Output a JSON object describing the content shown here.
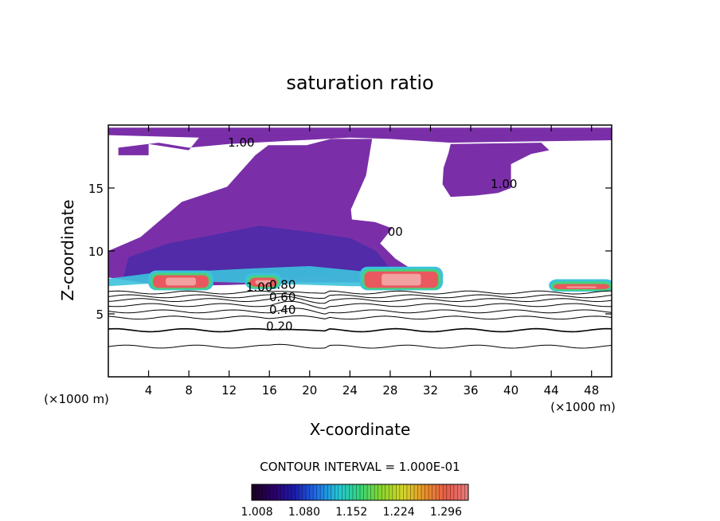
{
  "chart_data": {
    "type": "heatmap",
    "title": "saturation ratio",
    "xlabel": "X-coordinate",
    "ylabel": "Z-coordinate",
    "x_unit": "(×1000 m)",
    "x_unit_right": "(×1000 m)",
    "xlim": [
      0,
      50
    ],
    "ylim": [
      0,
      20
    ],
    "x_ticks": [
      4,
      8,
      12,
      16,
      20,
      24,
      28,
      32,
      36,
      40,
      44,
      48
    ],
    "y_ticks": [
      5,
      10,
      15
    ],
    "contour_interval_text": "CONTOUR INTERVAL = 1.000E-01",
    "contour_levels": [
      0.1,
      0.2,
      0.3,
      0.4,
      0.5,
      0.6,
      0.7,
      0.8,
      0.9,
      1.0
    ],
    "contour_labels": [
      {
        "text": "1.00",
        "x": 13.2,
        "y": 18.3
      },
      {
        "text": "1.00",
        "x": 39.3,
        "y": 15.0
      },
      {
        "text": "1.00",
        "x": 15.0,
        "y": 6.8
      },
      {
        "text": "0.80",
        "x": 17.3,
        "y": 7.0
      },
      {
        "text": "0.60",
        "x": 17.3,
        "y": 6.0
      },
      {
        "text": "0.40",
        "x": 17.3,
        "y": 5.0
      },
      {
        "text": "0.20",
        "x": 17.0,
        "y": 3.7
      },
      {
        "text": "00",
        "x": 28.5,
        "y": 11.2
      }
    ],
    "colorbar": {
      "min": 1.0,
      "max": 1.33,
      "tick_values": [
        1.008,
        1.08,
        1.152,
        1.224,
        1.296
      ],
      "tick_labels": [
        "1.008",
        "1.080",
        "1.152",
        "1.224",
        "1.296"
      ],
      "colors": [
        "#1a001f",
        "#2b0066",
        "#1c1cb0",
        "#1f6fe8",
        "#22c7d6",
        "#35d67a",
        "#8bd62c",
        "#d6d62a",
        "#e8902a",
        "#e85a4a",
        "#e87d7d"
      ]
    },
    "field_colors": {
      "outside": "#ffffff",
      "background_level": "#7a2fa8",
      "deep_level": "#4a2aa8",
      "band_cyan": "#3cc2dd",
      "band_green": "#47d27a",
      "core_red": "#e8585e",
      "core_light": "#f2a0a0"
    },
    "regions": {
      "upper_layer": [
        [
          0,
          19.8
        ],
        [
          50,
          19.8
        ],
        [
          50,
          18.8
        ],
        [
          34,
          18.6
        ],
        [
          28,
          18.9
        ],
        [
          24,
          19.0
        ],
        [
          12,
          18.5
        ],
        [
          8,
          18.2
        ],
        [
          5,
          18.6
        ],
        [
          1,
          18.2
        ],
        [
          1,
          17.6
        ],
        [
          4,
          17.6
        ],
        [
          4,
          18.5
        ],
        [
          8,
          18.0
        ],
        [
          9,
          19.0
        ],
        [
          0,
          19.2
        ]
      ],
      "upper_right_blob": [
        [
          34,
          18.5
        ],
        [
          43,
          18.6
        ],
        [
          43.8,
          18.0
        ],
        [
          42,
          17.7
        ],
        [
          40,
          16.9
        ],
        [
          40,
          15.0
        ],
        [
          38.7,
          14.6
        ],
        [
          36.5,
          14.4
        ],
        [
          34,
          14.3
        ],
        [
          33.2,
          15.3
        ],
        [
          33.3,
          16.6
        ],
        [
          33.8,
          17.8
        ]
      ],
      "main_cloud": [
        [
          0,
          7.9
        ],
        [
          5.5,
          7.2
        ],
        [
          12,
          7.3
        ],
        [
          19,
          7.5
        ],
        [
          25,
          7.5
        ],
        [
          33,
          7.5
        ],
        [
          30.8,
          8.2
        ],
        [
          28.5,
          9.4
        ],
        [
          27,
          10.6
        ],
        [
          28.2,
          11.8
        ],
        [
          26.5,
          12.3
        ],
        [
          24.2,
          12.5
        ],
        [
          24.1,
          13.3
        ],
        [
          25.6,
          16.0
        ],
        [
          26.2,
          18.9
        ],
        [
          22.1,
          18.9
        ],
        [
          19.7,
          18.4
        ],
        [
          15.9,
          18.4
        ],
        [
          14.6,
          17.6
        ],
        [
          11.8,
          15.1
        ],
        [
          7.3,
          13.9
        ],
        [
          3.2,
          11.1
        ],
        [
          0,
          10.0
        ]
      ],
      "inner_dark": [
        [
          1.5,
          7.9
        ],
        [
          10.0,
          7.7
        ],
        [
          19.0,
          7.9
        ],
        [
          28.0,
          8.6
        ],
        [
          26.6,
          10.0
        ],
        [
          24.1,
          11.0
        ],
        [
          20.0,
          11.5
        ],
        [
          15.0,
          12.0
        ],
        [
          10.0,
          11.2
        ],
        [
          6.0,
          10.6
        ],
        [
          2.0,
          9.5
        ]
      ],
      "cyan_band": [
        [
          0,
          7.2
        ],
        [
          8,
          7.6
        ],
        [
          16,
          7.4
        ],
        [
          24,
          7.2
        ],
        [
          31,
          7.2
        ],
        [
          31,
          8.0
        ],
        [
          25,
          8.4
        ],
        [
          20,
          8.8
        ],
        [
          14,
          8.6
        ],
        [
          9,
          8.4
        ],
        [
          4,
          8.2
        ],
        [
          0,
          7.8
        ]
      ],
      "cells": [
        {
          "x": [
            4.2,
            10.2
          ],
          "y_base": 7.0,
          "y_top": 8.2
        },
        {
          "x": [
            13.8,
            17.0
          ],
          "y_base": 7.1,
          "y_top": 8.0
        },
        {
          "x": [
            25.2,
            33.0
          ],
          "y_base": 7.0,
          "y_top": 8.5
        },
        {
          "x": [
            44.0,
            50.0
          ],
          "y_base": 6.9,
          "y_top": 7.5
        }
      ],
      "isolines": [
        {
          "level": 0.2,
          "y": 2.4
        },
        {
          "level": 0.2,
          "y": 3.7
        },
        {
          "level": 0.4,
          "y": 4.7
        },
        {
          "level": 0.5,
          "y": 5.2
        },
        {
          "level": 0.6,
          "y": 5.7
        },
        {
          "level": 0.7,
          "y": 6.1
        },
        {
          "level": 0.8,
          "y": 6.4
        },
        {
          "level": 0.9,
          "y": 6.7
        }
      ]
    }
  }
}
